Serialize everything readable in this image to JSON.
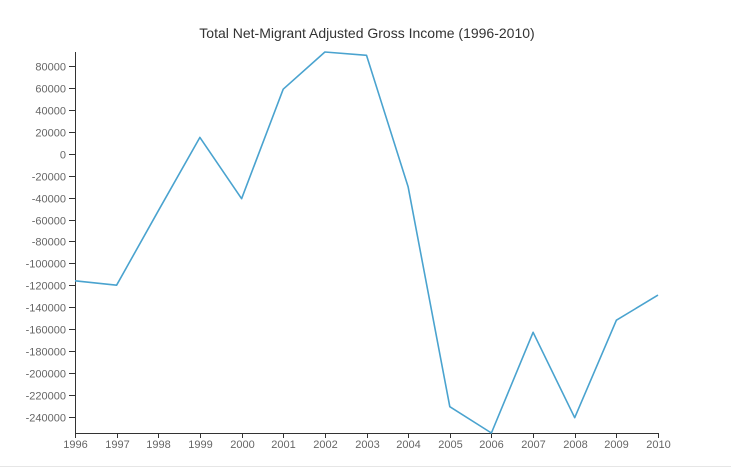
{
  "chart_data": {
    "type": "line",
    "title": "Total Net-Migrant Adjusted Gross Income (1996-2010)",
    "xlabel": "",
    "ylabel": "",
    "x": [
      1996,
      1997,
      1998,
      1999,
      2000,
      2001,
      2002,
      2003,
      2004,
      2005,
      2006,
      2007,
      2008,
      2009,
      2010
    ],
    "series": [
      {
        "values": [
          -116000,
          -120000,
          -52000,
          15000,
          -41000,
          59000,
          93000,
          90000,
          -30000,
          -231000,
          -255000,
          -163000,
          -241000,
          -152000,
          -129000
        ]
      }
    ],
    "yticks": [
      80000,
      60000,
      40000,
      20000,
      0,
      -20000,
      -40000,
      -60000,
      -80000,
      -100000,
      -120000,
      -140000,
      -160000,
      -180000,
      -200000,
      -220000,
      -240000
    ],
    "ylim": [
      -255000,
      93000
    ],
    "xlim": [
      1996,
      2010
    ],
    "grid": false,
    "legend": "none",
    "colors": {
      "line": "#4aa3cf",
      "axis": "#333333",
      "tick_text": "#666666",
      "title_text": "#333333"
    }
  }
}
